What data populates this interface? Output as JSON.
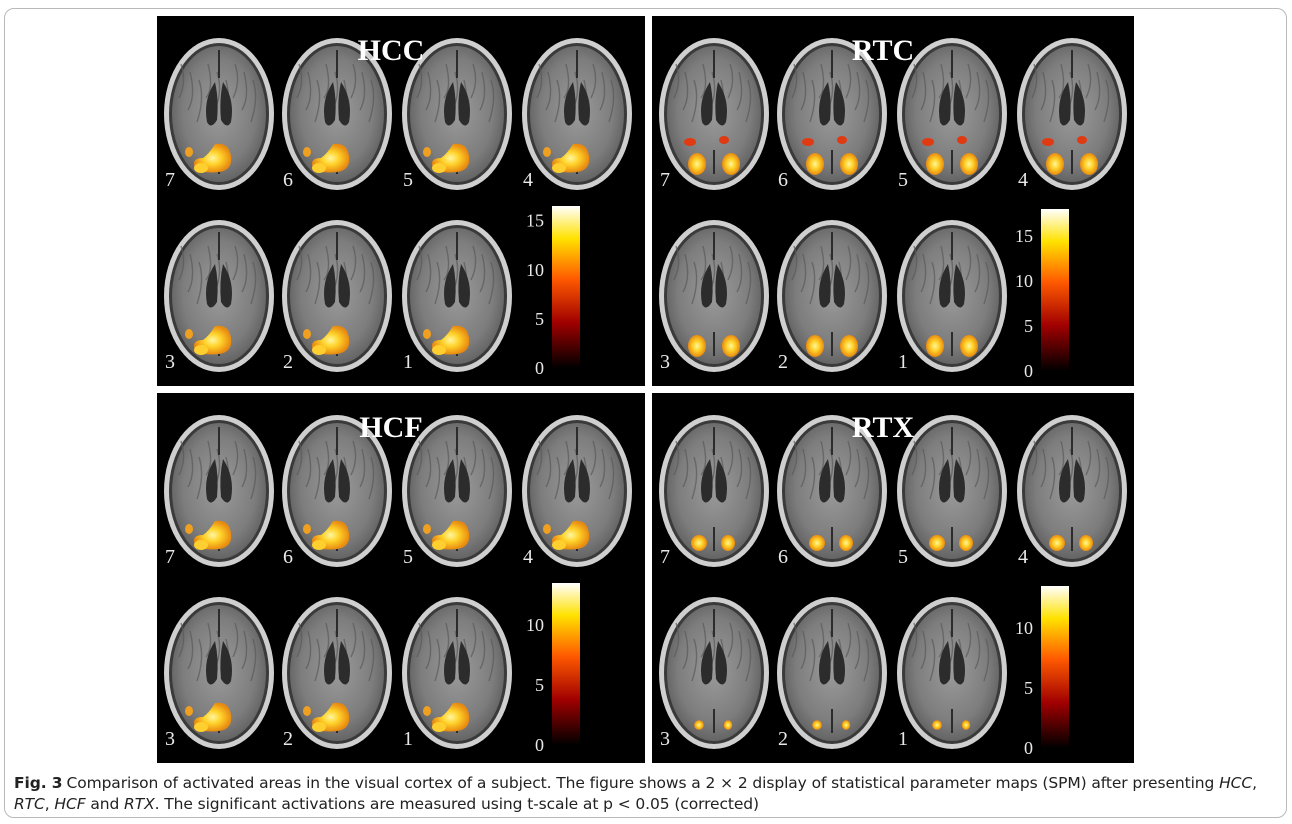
{
  "figure": {
    "panels": [
      {
        "id": "hcc",
        "title": "HCC",
        "slice_labels": [
          "7",
          "6",
          "5",
          "4",
          "3",
          "2",
          "1"
        ],
        "colorbar_ticks": [
          "15",
          "10",
          "5",
          "0"
        ],
        "colorbar_max": 16.5
      },
      {
        "id": "rtc",
        "title": "RTC",
        "slice_labels": [
          "7",
          "6",
          "5",
          "4",
          "3",
          "2",
          "1"
        ],
        "colorbar_ticks": [
          "15",
          "10",
          "5",
          "0"
        ],
        "colorbar_max": 18
      },
      {
        "id": "hcf",
        "title": "HCF",
        "slice_labels": [
          "7",
          "6",
          "5",
          "4",
          "3",
          "2",
          "1"
        ],
        "colorbar_ticks": [
          "10",
          "5",
          "0"
        ],
        "colorbar_max": 13.5
      },
      {
        "id": "rtx",
        "title": "RTX",
        "slice_labels": [
          "7",
          "6",
          "5",
          "4",
          "3",
          "2",
          "1"
        ],
        "colorbar_ticks": [
          "10",
          "5",
          "0"
        ],
        "colorbar_max": 13.5
      }
    ]
  },
  "caption": {
    "label": "Fig. 3",
    "text_1": "Comparison of activated areas in the visual cortex of a subject. The figure shows a 2 × 2 display of statistical parameter maps (SPM) after presenting ",
    "em_1": "HCC",
    "sep_1": ", ",
    "em_2": "RTC",
    "sep_2": ", ",
    "em_3": "HCF",
    "sep_3": " and ",
    "em_4": "RTX",
    "text_2": ". The significant activations are measured using t-scale at p < 0.05 (corrected)"
  },
  "colors": {
    "background": "#000000",
    "brain_gray": "#8a8a8a",
    "activation_yellow": "#ffe23a",
    "activation_red": "#e0301a"
  }
}
